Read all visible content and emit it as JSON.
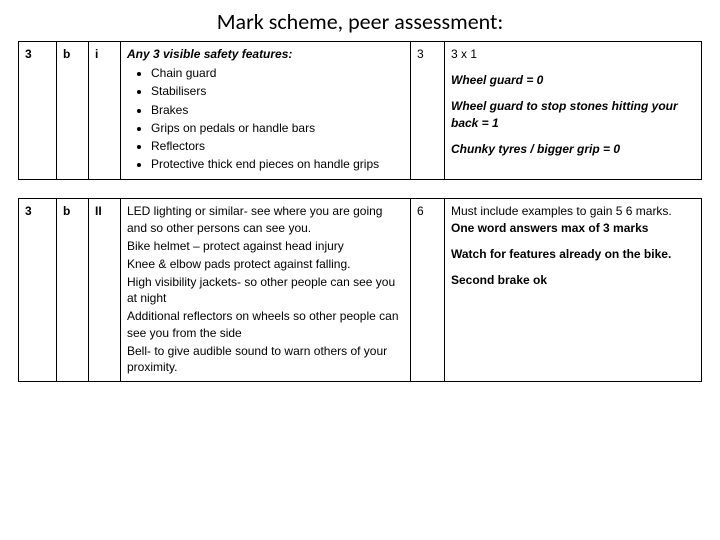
{
  "title": "Mark scheme, peer assessment:",
  "row1": {
    "question": "3",
    "part": "b",
    "subpart": "i",
    "answer_heading": "Any 3 visible safety features:",
    "bullets": [
      "Chain guard",
      "Stabilisers",
      "Brakes",
      "Grips on pedals or handle bars",
      "Reflectors",
      "Protective thick end pieces on handle grips"
    ],
    "marks": "3",
    "notes_plain1": "3 x 1",
    "notes_bold1": "Wheel guard = 0",
    "notes_bold2": "Wheel guard to stop stones hitting your back = 1",
    "notes_bold3": "Chunky tyres / bigger grip = 0"
  },
  "row2": {
    "question": "3",
    "part": "b",
    "subpart": "II",
    "paragraphs": [
      "LED lighting or similar- see where you are going and so other persons can see you.",
      "Bike helmet – protect against head injury",
      "Knee & elbow pads  protect against falling.",
      "High visibility jackets- so other people can see you at night",
      "Additional reflectors on wheels  so other people can see you from the side",
      "Bell- to give audible sound to warn others of your proximity."
    ],
    "marks": "6",
    "notes_plain1": "Must include examples to gain 5 6 marks.",
    "notes_bold1": "One word answers max of 3 marks",
    "notes_bold2": "Watch for features already on the bike.",
    "notes_bold3": "Second brake ok"
  }
}
